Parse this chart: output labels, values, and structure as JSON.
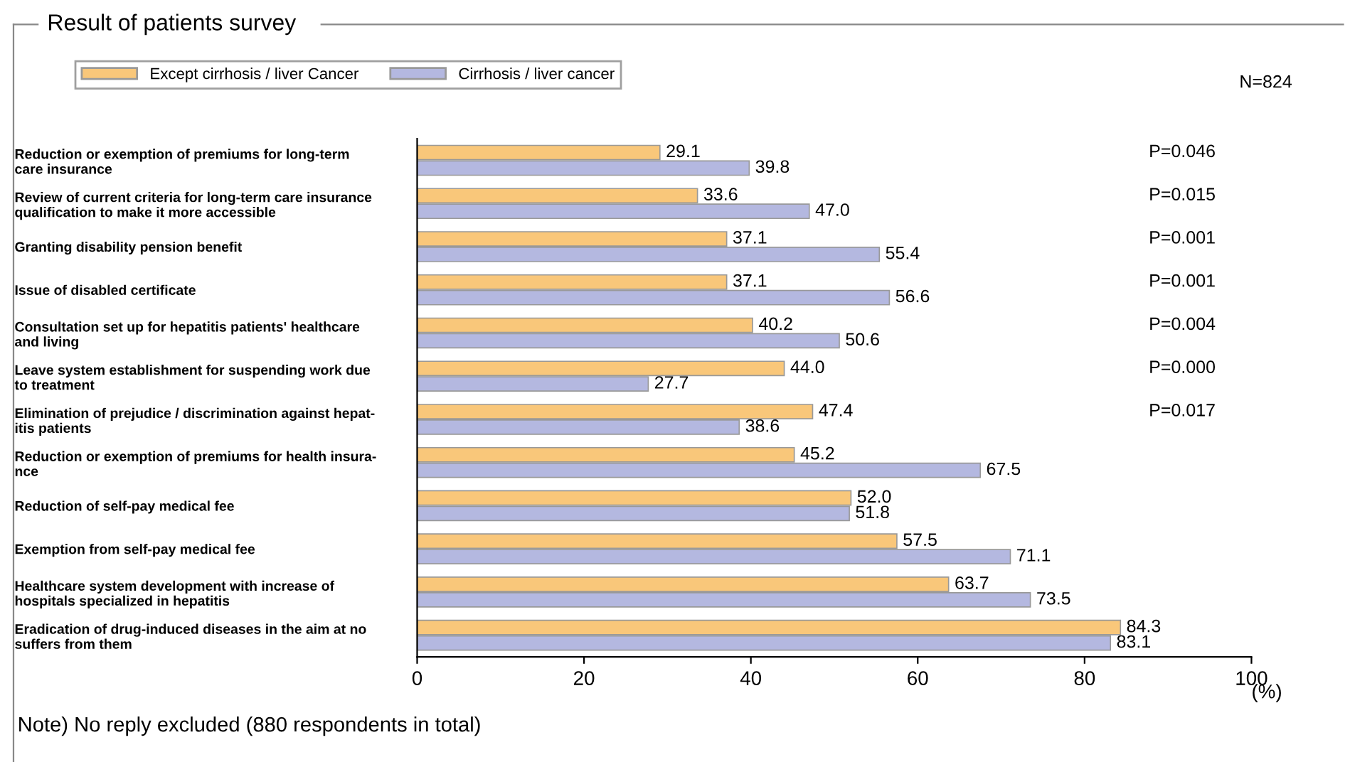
{
  "chart_data": {
    "type": "bar",
    "orientation": "horizontal",
    "title": "Result of patients survey",
    "xlabel": "(%)",
    "categories": [
      "Reduction or exemption of premiums for long-term\ncare insurance",
      "Review of current criteria for long-term care insurance\nqualification to make it more accessible",
      "Granting disability pension benefit",
      "Issue of disabled certificate",
      "Consultation set up for hepatitis patients' healthcare\nand living",
      "Leave system establishment for suspending work due\nto treatment",
      "Elimination of prejudice / discrimination against hepat-\nitis patients",
      "Reduction or exemption of premiums for health insura-\nnce",
      "Reduction of self-pay medical fee",
      "Exemption from self-pay medical fee",
      "Healthcare system development with increase of\nhospitals specialized in hepatitis",
      "Eradication of drug-induced diseases in the aim at no\nsuffers from them"
    ],
    "series": [
      {
        "name": "Except cirrhosis / liver Cancer",
        "color": "#f9c77a",
        "values": [
          29.1,
          33.6,
          37.1,
          37.1,
          40.2,
          44.0,
          47.4,
          45.2,
          52.0,
          57.5,
          63.7,
          84.3
        ],
        "value_labels": [
          "29.1",
          "33.6",
          "37.1",
          "37.1",
          "40.2",
          "44.0",
          "47.4",
          "45.2",
          "52.0",
          "57.5",
          "63.7",
          "84.3"
        ]
      },
      {
        "name": "Cirrhosis / liver cancer",
        "color": "#b4b8e0",
        "values": [
          39.8,
          47.0,
          55.4,
          56.6,
          50.6,
          27.7,
          38.6,
          67.5,
          51.8,
          71.1,
          73.5,
          83.1
        ],
        "value_labels": [
          "39.8",
          "47.0",
          "55.4",
          "56.6",
          "50.6",
          "27.7",
          "38.6",
          "67.5",
          "51.8",
          "71.1",
          "73.5",
          "83.1"
        ]
      }
    ],
    "xlim": [
      0,
      100
    ],
    "xticks": [
      0,
      20,
      40,
      60,
      80,
      100
    ],
    "legend": "top left",
    "grid": false,
    "annotations": [
      "N=824",
      "P=0.046",
      "P=0.015",
      "P=0.001",
      "P=0.001",
      "P=0.004",
      "P=0.000",
      "P=0.017",
      "Note) No reply excluded (880 respondents in total)"
    ]
  }
}
